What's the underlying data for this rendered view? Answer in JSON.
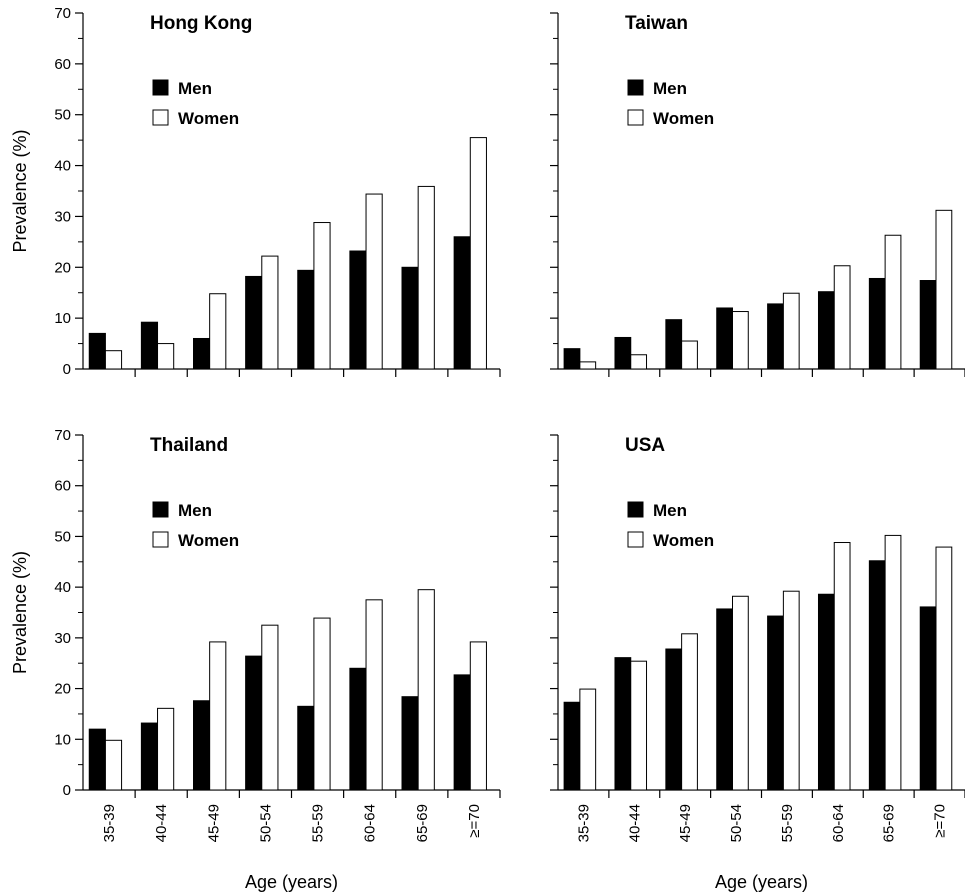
{
  "chart_data": [
    {
      "type": "bar",
      "title": "Hong Kong",
      "categories": [
        "35-39",
        "40-44",
        "45-49",
        "50-54",
        "55-59",
        "60-64",
        "65-69",
        "≥=70"
      ],
      "series": [
        {
          "name": "Men",
          "values": [
            7.0,
            9.2,
            6.0,
            18.2,
            19.4,
            23.2,
            20.0,
            26.0
          ]
        },
        {
          "name": "Women",
          "values": [
            3.6,
            5.0,
            14.8,
            22.2,
            28.8,
            34.4,
            35.9,
            45.5
          ]
        }
      ],
      "ylabel": "Prevalence (%)",
      "xlabel": "",
      "ylim": [
        0,
        70
      ],
      "yticks": [
        0,
        10,
        20,
        30,
        40,
        50,
        60,
        70
      ],
      "show_category_labels": false,
      "legend": "upper-left"
    },
    {
      "type": "bar",
      "title": "Taiwan",
      "categories": [
        "35-39",
        "40-44",
        "45-49",
        "50-54",
        "55-59",
        "60-64",
        "65-69",
        "≥=70"
      ],
      "series": [
        {
          "name": "Men",
          "values": [
            4.0,
            6.2,
            9.7,
            12.0,
            12.8,
            15.2,
            17.8,
            17.4
          ]
        },
        {
          "name": "Women",
          "values": [
            1.4,
            2.8,
            5.5,
            11.3,
            14.9,
            20.3,
            26.3,
            31.2
          ]
        }
      ],
      "ylabel": "",
      "xlabel": "",
      "ylim": [
        0,
        70
      ],
      "yticks": [
        0,
        10,
        20,
        30,
        40,
        50,
        60,
        70
      ],
      "show_category_labels": false,
      "legend": "upper-left"
    },
    {
      "type": "bar",
      "title": "Thailand",
      "categories": [
        "35-39",
        "40-44",
        "45-49",
        "50-54",
        "55-59",
        "60-64",
        "65-69",
        "≥=70"
      ],
      "series": [
        {
          "name": "Men",
          "values": [
            12.0,
            13.2,
            17.6,
            26.4,
            16.5,
            24.0,
            18.4,
            22.7
          ]
        },
        {
          "name": "Women",
          "values": [
            9.8,
            16.1,
            29.2,
            32.5,
            33.9,
            37.5,
            39.5,
            29.2
          ]
        }
      ],
      "ylabel": "Prevalence (%)",
      "xlabel": "Age (years)",
      "ylim": [
        0,
        70
      ],
      "yticks": [
        0,
        10,
        20,
        30,
        40,
        50,
        60,
        70
      ],
      "show_category_labels": true,
      "legend": "upper-left"
    },
    {
      "type": "bar",
      "title": "USA",
      "categories": [
        "35-39",
        "40-44",
        "45-49",
        "50-54",
        "55-59",
        "60-64",
        "65-69",
        "≥=70"
      ],
      "series": [
        {
          "name": "Men",
          "values": [
            17.3,
            26.1,
            27.8,
            35.7,
            34.3,
            38.6,
            45.2,
            36.1
          ]
        },
        {
          "name": "Women",
          "values": [
            19.9,
            25.4,
            30.8,
            38.2,
            39.2,
            48.8,
            50.2,
            47.9
          ]
        }
      ],
      "ylabel": "",
      "xlabel": "Age (years)",
      "ylim": [
        0,
        70
      ],
      "yticks": [
        0,
        10,
        20,
        30,
        40,
        50,
        60,
        70
      ],
      "show_category_labels": true,
      "legend": "upper-left"
    }
  ],
  "colors": {
    "men": "#000000",
    "women": "#ffffff",
    "axis": "#000000"
  }
}
